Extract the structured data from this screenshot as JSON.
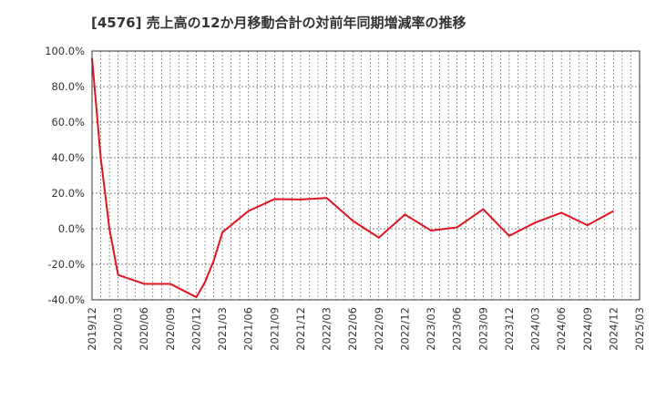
{
  "chart_data": {
    "type": "line",
    "title": "[4576]  売上高の12か月移動合計の対前年同期増減率の推移",
    "xlabel": "",
    "ylabel": "",
    "ylim": [
      -40,
      100
    ],
    "yticks": [
      100,
      80,
      60,
      40,
      20,
      0,
      -20,
      -40
    ],
    "ytick_labels": [
      "100.0%",
      "80.0%",
      "60.0%",
      "40.0%",
      "20.0%",
      "0.0%",
      "-20.0%",
      "-40.0%"
    ],
    "xtick_labels": [
      "2019/12",
      "2020/03",
      "2020/06",
      "2020/09",
      "2020/12",
      "2021/03",
      "2021/06",
      "2021/09",
      "2021/12",
      "2022/03",
      "2022/06",
      "2022/09",
      "2022/12",
      "2023/03",
      "2023/06",
      "2023/09",
      "2023/12",
      "2024/03",
      "2024/06",
      "2024/09",
      "2024/12",
      "2025/03"
    ],
    "grid": true,
    "series": [
      {
        "name": "対前年同期増減率",
        "color": "#e0141e",
        "x": [
          "2019/12",
          "2020/01",
          "2020/02",
          "2020/03",
          "2020/06",
          "2020/09",
          "2020/12",
          "2021/01",
          "2021/02",
          "2021/03",
          "2021/06",
          "2021/09",
          "2021/12",
          "2022/03",
          "2022/06",
          "2022/09",
          "2022/12",
          "2023/03",
          "2023/06",
          "2023/09",
          "2023/12",
          "2024/03",
          "2024/06",
          "2024/09",
          "2024/12"
        ],
        "values": [
          96,
          40,
          0,
          -26,
          -31,
          -31,
          -38.5,
          -30,
          -18,
          -2,
          10,
          16.7,
          16.5,
          17.3,
          4.5,
          -5,
          8,
          -1,
          0.8,
          11,
          -4,
          3.5,
          9,
          2,
          10
        ]
      }
    ]
  }
}
